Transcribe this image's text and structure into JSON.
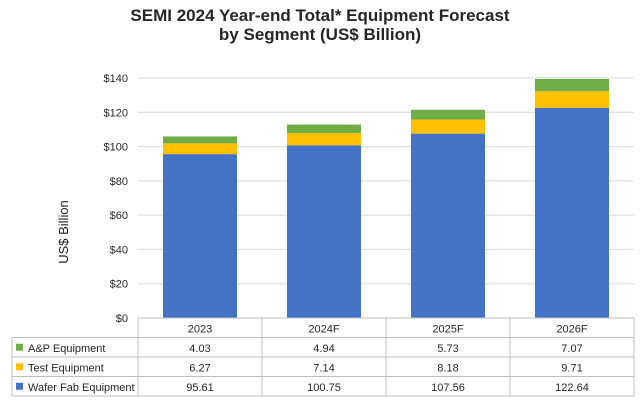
{
  "chart_data": {
    "type": "bar",
    "stacked": true,
    "title_line1": "SEMI 2024 Year-end Total* Equipment Forecast",
    "title_line2": "by Segment (US$ Billion)",
    "ylabel": "US$ Billion",
    "xlabel": "",
    "categories": [
      "2023",
      "2024F",
      "2025F",
      "2026F"
    ],
    "ylim": [
      0,
      140
    ],
    "yticks": [
      0,
      20,
      40,
      60,
      80,
      100,
      120,
      140
    ],
    "ytick_labels": [
      "$0",
      "$20",
      "$40",
      "$60",
      "$80",
      "$100",
      "$120",
      "$140"
    ],
    "grid": true,
    "legend": "data-table",
    "series": [
      {
        "name": "Wafer Fab Equipment",
        "color": "#4472C4",
        "values": [
          95.61,
          100.75,
          107.56,
          122.64
        ],
        "labels": [
          "95.61",
          "100.75",
          "107.56",
          "122.64"
        ]
      },
      {
        "name": "Test Equipment",
        "color": "#FFC000",
        "values": [
          6.27,
          7.14,
          8.18,
          9.71
        ],
        "labels": [
          "6.27",
          "7.14",
          "8.18",
          "9.71"
        ]
      },
      {
        "name": "A&P Equipment",
        "color": "#70AD47",
        "values": [
          4.03,
          4.94,
          5.73,
          7.07
        ],
        "labels": [
          "4.03",
          "4.94",
          "5.73",
          "7.07"
        ]
      }
    ],
    "table_row_order": [
      "A&P Equipment",
      "Test Equipment",
      "Wafer Fab Equipment"
    ]
  }
}
